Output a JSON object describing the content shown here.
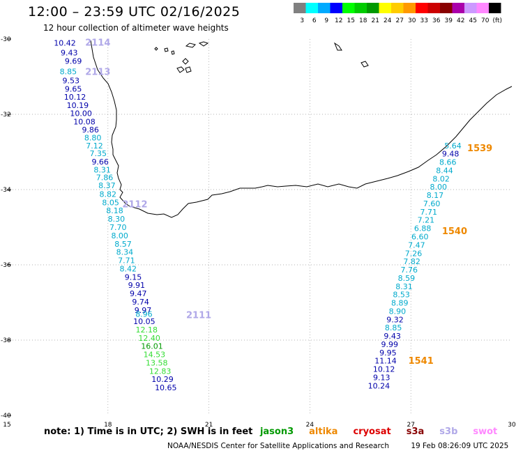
{
  "title": "12:00 – 23:59 UTC 02/16/2025",
  "subtitle": "12 hour collection of altimeter wave heights",
  "scale": {
    "colors": [
      "#808080",
      "#00ffff",
      "#00aaff",
      "#0000ff",
      "#00ff00",
      "#00cc00",
      "#009900",
      "#ffff00",
      "#ffcc00",
      "#ff9900",
      "#ff0000",
      "#cc0000",
      "#880000",
      "#aa00aa",
      "#cc99ff",
      "#ff88ff",
      "#000000"
    ],
    "labels": [
      "3",
      "6",
      "9",
      "12",
      "15",
      "18",
      "21",
      "24",
      "27",
      "30",
      "33",
      "36",
      "39",
      "42",
      "45",
      "70",
      "(ft)"
    ]
  },
  "axes": {
    "x_ticks": [
      "15",
      "18",
      "21",
      "24",
      "27",
      "30"
    ],
    "y_ticks": [
      "-30",
      "-32",
      "-34",
      "-36",
      "-38",
      "-40"
    ]
  },
  "tracks": [
    {
      "id": "2114",
      "color": "#b0a8e8",
      "points": [
        {
          "lat": -30.1,
          "lon": 16.72,
          "v": "10.42",
          "c": "#0000aa"
        },
        {
          "lat": -30.36,
          "lon": 16.85,
          "v": "9.43",
          "c": "#0000aa"
        },
        {
          "lat": -30.58,
          "lon": 16.97,
          "v": "9.69",
          "c": "#0000aa"
        }
      ]
    },
    {
      "id": "2113",
      "color": "#b0a8e8",
      "points": [
        {
          "lat": -30.86,
          "lon": 16.82,
          "v": "8.85",
          "c": "#00aacc"
        },
        {
          "lat": -31.1,
          "lon": 16.9,
          "v": "9.53",
          "c": "#0000aa"
        },
        {
          "lat": -31.32,
          "lon": 16.97,
          "v": "9.65",
          "c": "#0000aa"
        },
        {
          "lat": -31.54,
          "lon": 17.02,
          "v": "10.12",
          "c": "#0000aa"
        },
        {
          "lat": -31.76,
          "lon": 17.1,
          "v": "10.19",
          "c": "#0000aa"
        },
        {
          "lat": -31.97,
          "lon": 17.2,
          "v": "10.00",
          "c": "#0000aa"
        },
        {
          "lat": -32.19,
          "lon": 17.3,
          "v": "10.08",
          "c": "#0000aa"
        },
        {
          "lat": -32.41,
          "lon": 17.48,
          "v": "9.86",
          "c": "#0000aa"
        },
        {
          "lat": -32.62,
          "lon": 17.55,
          "v": "8.80",
          "c": "#00aacc"
        },
        {
          "lat": -32.83,
          "lon": 17.6,
          "v": "7.12",
          "c": "#00aacc"
        },
        {
          "lat": -33.04,
          "lon": 17.71,
          "v": "7.35",
          "c": "#00aacc"
        },
        {
          "lat": -33.26,
          "lon": 17.77,
          "v": "9.66",
          "c": "#0000aa"
        },
        {
          "lat": -33.47,
          "lon": 17.83,
          "v": "8.31",
          "c": "#00aacc"
        },
        {
          "lat": -33.68,
          "lon": 17.9,
          "v": "7.86",
          "c": "#00aacc"
        },
        {
          "lat": -33.89,
          "lon": 17.97,
          "v": "8.37",
          "c": "#00aacc"
        }
      ]
    },
    {
      "id": "2112",
      "color": "#b0a8e8",
      "points": [
        {
          "lat": -34.12,
          "lon": 18.0,
          "v": "8.82",
          "c": "#00aacc"
        },
        {
          "lat": -34.34,
          "lon": 18.08,
          "v": "8.05",
          "c": "#00aacc"
        },
        {
          "lat": -34.56,
          "lon": 18.2,
          "v": "8.18",
          "c": "#00aacc"
        },
        {
          "lat": -34.78,
          "lon": 18.25,
          "v": "8.30",
          "c": "#00aacc"
        },
        {
          "lat": -35.0,
          "lon": 18.3,
          "v": "7.70",
          "c": "#00aacc"
        },
        {
          "lat": -35.22,
          "lon": 18.35,
          "v": "8.00",
          "c": "#00aacc"
        },
        {
          "lat": -35.44,
          "lon": 18.45,
          "v": "8.57",
          "c": "#00aacc"
        },
        {
          "lat": -35.66,
          "lon": 18.5,
          "v": "8.34",
          "c": "#00aacc"
        },
        {
          "lat": -35.88,
          "lon": 18.55,
          "v": "7.71",
          "c": "#00aacc"
        },
        {
          "lat": -36.1,
          "lon": 18.6,
          "v": "8.42",
          "c": "#00aacc"
        },
        {
          "lat": -36.32,
          "lon": 18.75,
          "v": "9.15",
          "c": "#0000aa"
        },
        {
          "lat": -36.54,
          "lon": 18.85,
          "v": "9.91",
          "c": "#0000aa"
        },
        {
          "lat": -36.76,
          "lon": 18.9,
          "v": "9.47",
          "c": "#0000aa"
        },
        {
          "lat": -36.98,
          "lon": 18.97,
          "v": "9.74",
          "c": "#0000aa"
        },
        {
          "lat": -37.2,
          "lon": 19.04,
          "v": "9.97",
          "c": "#0000aa"
        }
      ]
    },
    {
      "id": "2111",
      "color": "#b0a8e8",
      "points": [
        {
          "lat": -37.31,
          "lon": 19.07,
          "v": "8.96",
          "c": "#00aacc"
        },
        {
          "lat": -37.5,
          "lon": 19.08,
          "v": "10.05",
          "c": "#0000aa"
        },
        {
          "lat": -37.72,
          "lon": 19.15,
          "v": "12.18",
          "c": "#33dd33"
        },
        {
          "lat": -37.94,
          "lon": 19.23,
          "v": "12.40",
          "c": "#33dd33"
        },
        {
          "lat": -38.16,
          "lon": 19.31,
          "v": "16.01",
          "c": "#009900"
        },
        {
          "lat": -38.38,
          "lon": 19.38,
          "v": "14.53",
          "c": "#33dd33"
        },
        {
          "lat": -38.6,
          "lon": 19.45,
          "v": "13.58",
          "c": "#33dd33"
        },
        {
          "lat": -38.82,
          "lon": 19.55,
          "v": "12.83",
          "c": "#33dd33"
        },
        {
          "lat": -39.04,
          "lon": 19.62,
          "v": "10.29",
          "c": "#0000aa"
        },
        {
          "lat": -39.26,
          "lon": 19.72,
          "v": "10.65",
          "c": "#0000aa"
        }
      ]
    },
    {
      "id": "1539",
      "color": "#ee8800",
      "points": [
        {
          "lat": -32.83,
          "lon": 28.25,
          "v": "5.64",
          "c": "#00aacc"
        },
        {
          "lat": -33.05,
          "lon": 28.18,
          "v": "9.48",
          "c": "#0000aa"
        },
        {
          "lat": -33.27,
          "lon": 28.1,
          "v": "8.66",
          "c": "#00aacc"
        },
        {
          "lat": -33.49,
          "lon": 28.0,
          "v": "8.44",
          "c": "#00aacc"
        },
        {
          "lat": -33.71,
          "lon": 27.9,
          "v": "8.02",
          "c": "#00aacc"
        },
        {
          "lat": -33.93,
          "lon": 27.82,
          "v": "8.00",
          "c": "#00aacc"
        },
        {
          "lat": -34.15,
          "lon": 27.72,
          "v": "8.17",
          "c": "#00aacc"
        },
        {
          "lat": -34.37,
          "lon": 27.62,
          "v": "7.60",
          "c": "#00aacc"
        },
        {
          "lat": -34.59,
          "lon": 27.53,
          "v": "7.71",
          "c": "#00aacc"
        },
        {
          "lat": -34.81,
          "lon": 27.45,
          "v": "7.21",
          "c": "#00aacc"
        }
      ]
    },
    {
      "id": "1540",
      "color": "#ee8800",
      "points": [
        {
          "lat": -35.03,
          "lon": 27.35,
          "v": "6.88",
          "c": "#00aacc"
        },
        {
          "lat": -35.25,
          "lon": 27.27,
          "v": "6.60",
          "c": "#00aacc"
        },
        {
          "lat": -35.47,
          "lon": 27.17,
          "v": "7.47",
          "c": "#00aacc"
        },
        {
          "lat": -35.69,
          "lon": 27.08,
          "v": "7.26",
          "c": "#00aacc"
        },
        {
          "lat": -35.91,
          "lon": 27.03,
          "v": "7.82",
          "c": "#00aacc"
        },
        {
          "lat": -36.13,
          "lon": 26.95,
          "v": "7.76",
          "c": "#00aacc"
        },
        {
          "lat": -36.35,
          "lon": 26.87,
          "v": "8.59",
          "c": "#00aacc"
        },
        {
          "lat": -36.57,
          "lon": 26.8,
          "v": "8.31",
          "c": "#00aacc"
        },
        {
          "lat": -36.79,
          "lon": 26.72,
          "v": "8.53",
          "c": "#00aacc"
        },
        {
          "lat": -37.01,
          "lon": 26.67,
          "v": "8.89",
          "c": "#00aacc"
        },
        {
          "lat": -37.23,
          "lon": 26.6,
          "v": "8.90",
          "c": "#00aacc"
        },
        {
          "lat": -37.45,
          "lon": 26.53,
          "v": "9.32",
          "c": "#0000aa"
        },
        {
          "lat": -37.67,
          "lon": 26.48,
          "v": "8.85",
          "c": "#00aacc"
        },
        {
          "lat": -37.89,
          "lon": 26.45,
          "v": "9.43",
          "c": "#0000aa"
        }
      ]
    },
    {
      "id": "1541",
      "color": "#ee8800",
      "points": [
        {
          "lat": -38.11,
          "lon": 26.37,
          "v": "9.99",
          "c": "#0000aa"
        },
        {
          "lat": -38.33,
          "lon": 26.32,
          "v": "9.95",
          "c": "#0000aa"
        },
        {
          "lat": -38.55,
          "lon": 26.25,
          "v": "11.14",
          "c": "#0000aa"
        },
        {
          "lat": -38.77,
          "lon": 26.2,
          "v": "10.12",
          "c": "#0000aa"
        },
        {
          "lat": -38.99,
          "lon": 26.13,
          "v": "9.13",
          "c": "#0000aa"
        },
        {
          "lat": -39.21,
          "lon": 26.05,
          "v": "10.24",
          "c": "#0000aa"
        }
      ]
    }
  ],
  "track_labels": [
    {
      "id": "2114",
      "lat": -30.08,
      "lon": 17.7,
      "color": "#b0a8e8"
    },
    {
      "id": "2113",
      "lat": -30.86,
      "lon": 17.7,
      "color": "#b0a8e8"
    },
    {
      "id": "2112",
      "lat": -34.38,
      "lon": 18.8,
      "color": "#b0a8e8"
    },
    {
      "id": "2111",
      "lat": -37.32,
      "lon": 20.7,
      "color": "#b0a8e8"
    },
    {
      "id": "1539",
      "lat": -32.89,
      "lon": 29.05,
      "color": "#ee8800"
    },
    {
      "id": "1540",
      "lat": -35.09,
      "lon": 28.3,
      "color": "#ee8800"
    },
    {
      "id": "1541",
      "lat": -38.54,
      "lon": 27.3,
      "color": "#ee8800"
    }
  ],
  "note": {
    "text": "note: 1) Time is in UTC; 2) SWH is in feet",
    "missions": [
      {
        "name": "jason3",
        "color": "#009900"
      },
      {
        "name": "altika",
        "color": "#ee8800"
      },
      {
        "name": "cryosat",
        "color": "#dd0000"
      },
      {
        "name": "s3a",
        "color": "#880000"
      },
      {
        "name": "s3b",
        "color": "#b0a8e8"
      },
      {
        "name": "swot",
        "color": "#ff88ff"
      }
    ]
  },
  "credits": {
    "org": "NOAA/NESDIS Center for Satellite Applications and Research",
    "stamp": "19 Feb 08:26:09 UTC 2025"
  }
}
